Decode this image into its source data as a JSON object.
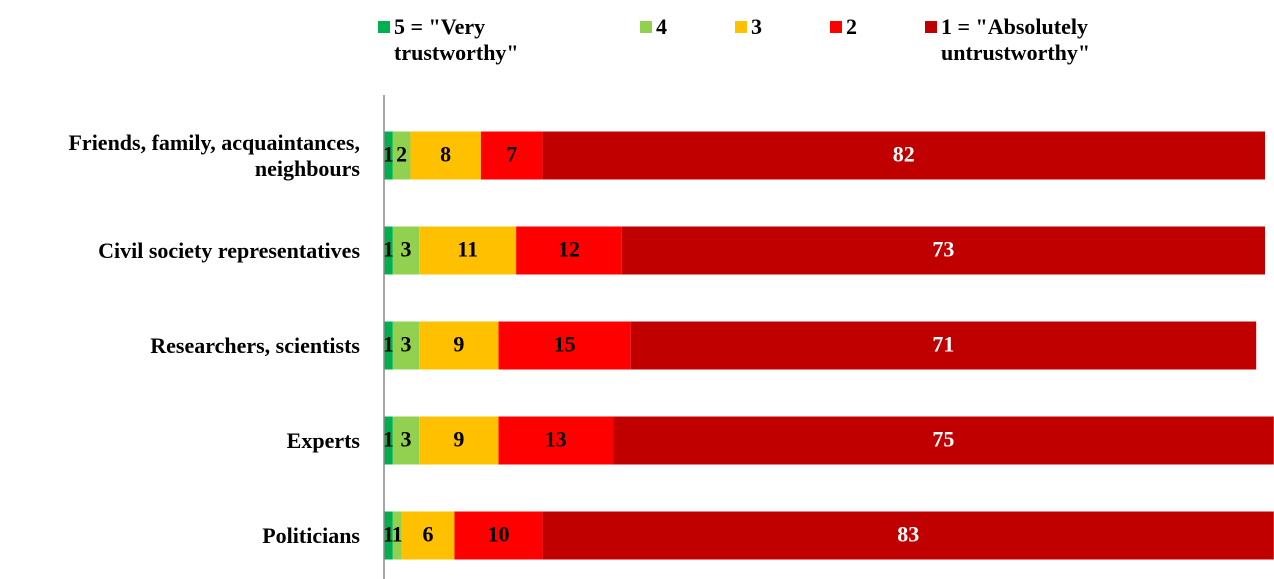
{
  "chart_data": {
    "type": "stacked_bar_horizontal",
    "categories": [
      "Friends, family, acquaintances, neighbours",
      "Civil society representatives",
      "Researchers, scientists",
      "Experts",
      "Politicians"
    ],
    "series": [
      {
        "name": "5 = \"Very trustworthy\"",
        "color": "#00b050",
        "values": [
          1,
          1,
          1,
          1,
          1
        ]
      },
      {
        "name": "4",
        "color": "#92d050",
        "values": [
          2,
          3,
          3,
          3,
          1
        ]
      },
      {
        "name": "3",
        "color": "#ffc000",
        "values": [
          8,
          11,
          9,
          9,
          6
        ]
      },
      {
        "name": "2",
        "color": "#ff0000",
        "values": [
          7,
          12,
          15,
          13,
          10
        ]
      },
      {
        "name": "1 = \"Absolutely untrustworthy\"",
        "color": "#c00000",
        "values": [
          82,
          73,
          71,
          75,
          83
        ]
      }
    ],
    "xlim": [
      0,
      100
    ],
    "legend": "top"
  }
}
